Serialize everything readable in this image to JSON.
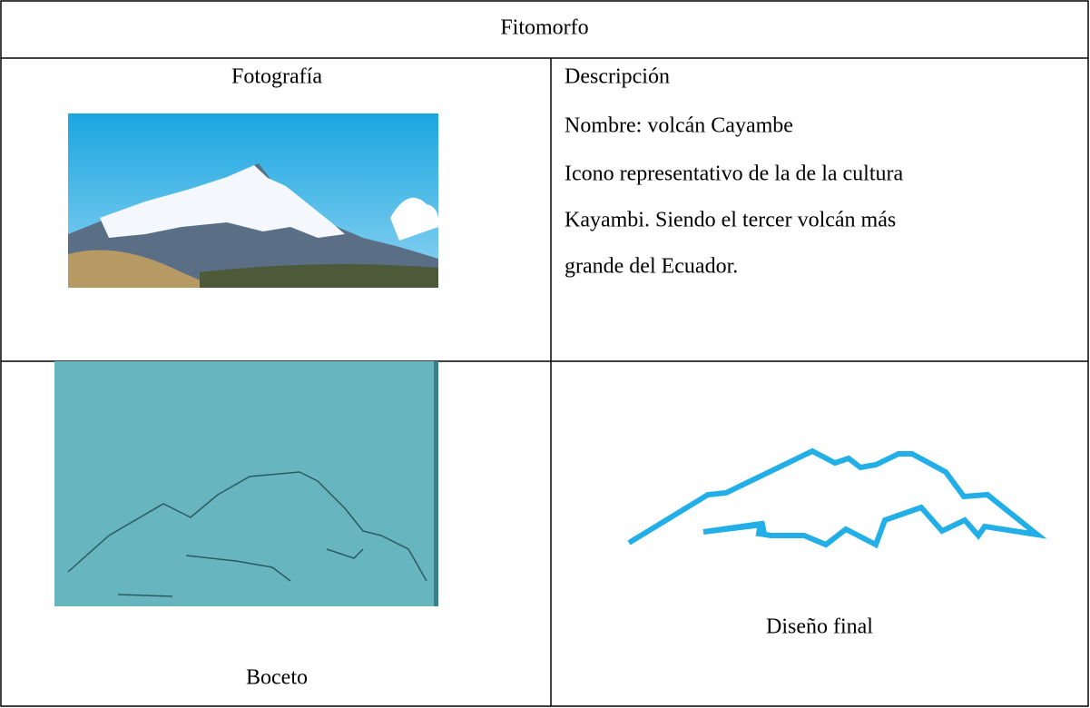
{
  "table": {
    "title": "Fitomorfo",
    "photo_header": "Fotografía",
    "description": {
      "heading": "Descripción",
      "name": "Nombre: volcán Cayambe",
      "lines": [
        "Icono representativo de la de la cultura",
        "Kayambi. Siendo el tercer volcán más",
        "grande del Ecuador."
      ]
    },
    "sketch_caption": "Boceto",
    "final_caption": "Diseño final"
  }
}
